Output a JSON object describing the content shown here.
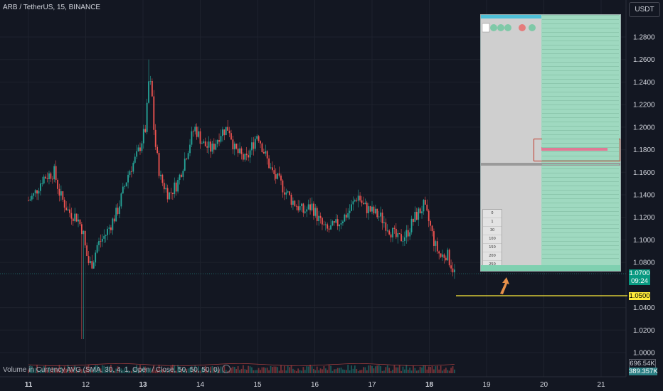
{
  "header": {
    "symbol_title": "ARB / TetherUS, 15, BINANCE",
    "currency_button": "USDT"
  },
  "indicator": {
    "label": "Volume in Currency AVG (SMA, 30, 4, 1, Open / Close, 50, 50, 50, 0)"
  },
  "price_tags": {
    "current_price": "1.0700",
    "countdown": "09:24",
    "hline_price": "1.0500",
    "volume_ma": "696.54K",
    "volume_value": "389.357K"
  },
  "colors": {
    "background": "#131722",
    "up": "#26a69a",
    "down": "#ef5350",
    "hline": "#ffeb3b",
    "arrow": "#e8914a"
  },
  "chart_data": {
    "type": "candlestick",
    "yaxis_ticks": [
      "1.2800",
      "1.2600",
      "1.2400",
      "1.2200",
      "1.2000",
      "1.1800",
      "1.1600",
      "1.1400",
      "1.1200",
      "1.1000",
      "1.0800",
      "1.0400",
      "1.0200",
      "1.0000"
    ],
    "ylim": [
      0.99,
      1.295
    ],
    "xaxis_ticks": [
      "11",
      "12",
      "13",
      "14",
      "15",
      "16",
      "17",
      "18",
      "19",
      "20",
      "21"
    ],
    "horizontal_line": 1.05,
    "close_path": [
      [
        0,
        1.135
      ],
      [
        0.1,
        1.14
      ],
      [
        0.25,
        1.155
      ],
      [
        0.45,
        1.16
      ],
      [
        0.55,
        1.14
      ],
      [
        0.7,
        1.125
      ],
      [
        0.85,
        1.12
      ],
      [
        0.95,
        1.108
      ],
      [
        1.0,
        1.09
      ],
      [
        1.06,
        1.078
      ],
      [
        1.12,
        1.08
      ],
      [
        1.2,
        1.095
      ],
      [
        1.35,
        1.105
      ],
      [
        1.55,
        1.125
      ],
      [
        1.75,
        1.16
      ],
      [
        1.9,
        1.175
      ],
      [
        2.05,
        1.2
      ],
      [
        2.1,
        1.24
      ],
      [
        2.15,
        1.235
      ],
      [
        2.2,
        1.19
      ],
      [
        2.3,
        1.155
      ],
      [
        2.45,
        1.14
      ],
      [
        2.6,
        1.15
      ],
      [
        2.75,
        1.175
      ],
      [
        2.9,
        1.2
      ],
      [
        3.05,
        1.185
      ],
      [
        3.2,
        1.18
      ],
      [
        3.35,
        1.195
      ],
      [
        3.5,
        1.2
      ],
      [
        3.6,
        1.18
      ],
      [
        3.8,
        1.17
      ],
      [
        4.0,
        1.195
      ],
      [
        4.1,
        1.18
      ],
      [
        4.25,
        1.16
      ],
      [
        4.4,
        1.15
      ],
      [
        4.6,
        1.135
      ],
      [
        4.8,
        1.125
      ],
      [
        4.95,
        1.13
      ],
      [
        5.1,
        1.115
      ],
      [
        5.2,
        1.108
      ],
      [
        5.35,
        1.112
      ],
      [
        5.5,
        1.12
      ],
      [
        5.6,
        1.125
      ],
      [
        5.75,
        1.14
      ],
      [
        5.85,
        1.13
      ],
      [
        6.0,
        1.125
      ],
      [
        6.15,
        1.12
      ],
      [
        6.3,
        1.11
      ],
      [
        6.45,
        1.1
      ],
      [
        6.6,
        1.105
      ],
      [
        6.75,
        1.12
      ],
      [
        6.9,
        1.13
      ],
      [
        7.0,
        1.115
      ],
      [
        7.1,
        1.095
      ],
      [
        7.2,
        1.085
      ],
      [
        7.3,
        1.088
      ],
      [
        7.45,
        1.07
      ]
    ],
    "volume_bars": true
  },
  "dom_panel": {
    "selector_options": [
      "1",
      "30",
      "100",
      "150",
      "200",
      "250"
    ],
    "selector_value": "0"
  }
}
